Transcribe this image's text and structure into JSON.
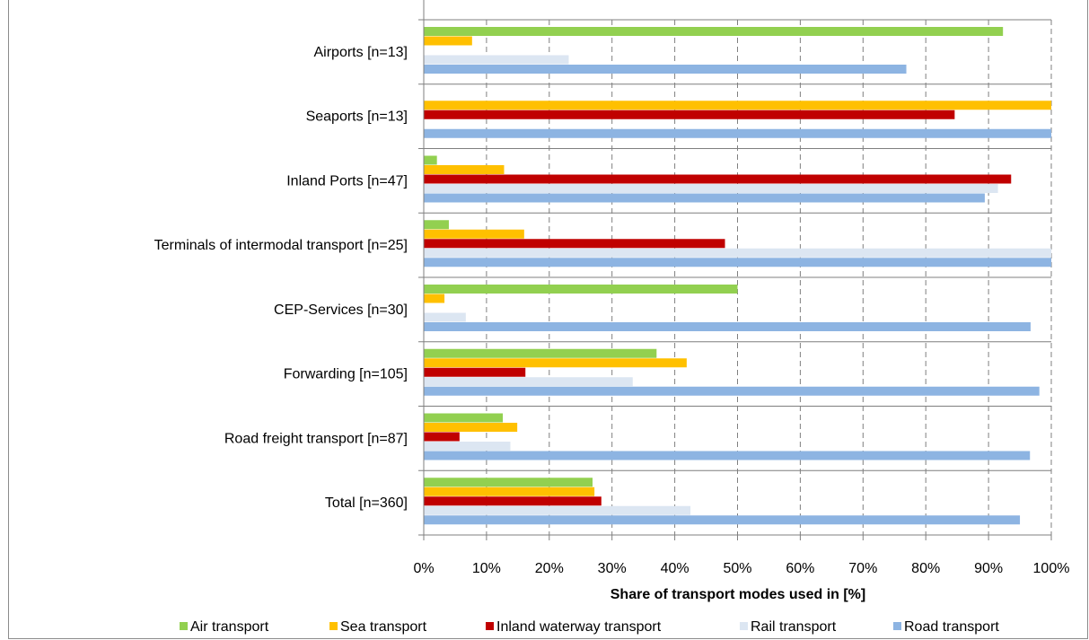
{
  "chart_data": {
    "type": "bar",
    "orientation": "horizontal",
    "categories": [
      "Airports  [n=13]",
      "Seaports [n=13]",
      "Inland Ports [n=47]",
      "Terminals of intermodal transport [n=25]",
      "CEP-Services [n=30]",
      "Forwarding [n=105]",
      "Road freight transport [n=87]",
      "Total [n=360]"
    ],
    "series": [
      {
        "name": "Air transport",
        "color": "#92d050",
        "values": [
          92.3,
          0,
          2.1,
          4,
          50,
          37.1,
          12.6,
          26.9
        ]
      },
      {
        "name": "Sea transport",
        "color": "#ffc000",
        "values": [
          7.7,
          100,
          12.8,
          16,
          3.3,
          41.9,
          14.9,
          27.2
        ]
      },
      {
        "name": "Inland waterway transport",
        "color": "#c00000",
        "values": [
          0,
          84.6,
          93.6,
          48,
          0,
          16.2,
          5.7,
          28.3
        ]
      },
      {
        "name": "Rail transport",
        "color": "#dce6f2",
        "values": [
          23.1,
          0,
          91.5,
          100,
          6.7,
          33.3,
          13.8,
          42.5
        ]
      },
      {
        "name": "Road transport",
        "color": "#8db4e2",
        "values": [
          76.9,
          100,
          89.4,
          100,
          96.7,
          98.1,
          96.6,
          95
        ]
      }
    ],
    "xlim": [
      0,
      100
    ],
    "xticks": [
      "0%",
      "10%",
      "20%",
      "30%",
      "40%",
      "50%",
      "60%",
      "70%",
      "80%",
      "90%",
      "100%"
    ],
    "xlabel": "Share of transport modes used in [%]",
    "ylabel": "",
    "title": "",
    "grid": "vertical dashed",
    "legend_position": "bottom"
  }
}
